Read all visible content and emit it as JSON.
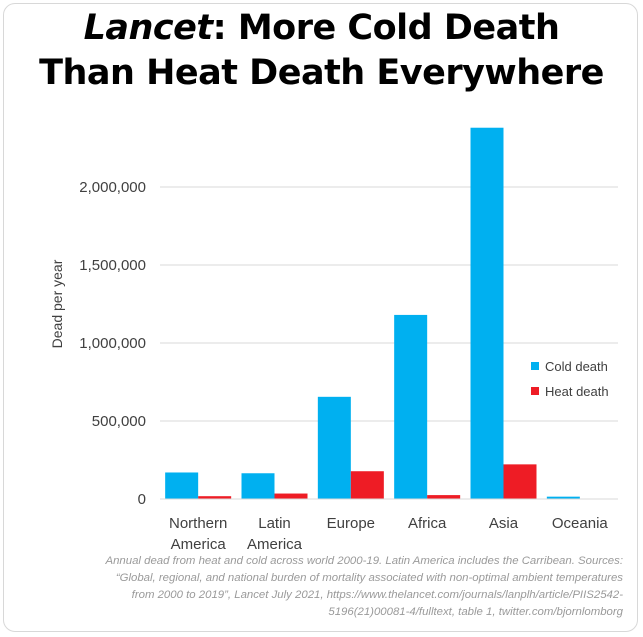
{
  "title": {
    "italic_part": "Lancet",
    "rest_line1": ": More Cold Death",
    "line2": "Than Heat Death Everywhere"
  },
  "chart_data": {
    "type": "bar",
    "categories": [
      [
        "Northern",
        "America"
      ],
      [
        "Latin",
        "America"
      ],
      [
        "Europe"
      ],
      [
        "Africa"
      ],
      [
        "Asia"
      ],
      [
        "Oceania"
      ]
    ],
    "series": [
      {
        "name": "Cold death",
        "color": "#00b0f0",
        "values": [
          170000,
          165000,
          655000,
          1180000,
          2380000,
          15000
        ]
      },
      {
        "name": "Heat death",
        "color": "#ee1c25",
        "values": [
          18000,
          35000,
          178000,
          25000,
          222000,
          1000
        ]
      }
    ],
    "ylabel": "Dead per year",
    "ylim": [
      0,
      2400000
    ],
    "yticks": [
      0,
      500000,
      1000000,
      1500000,
      2000000
    ],
    "ytick_labels": [
      "0",
      "500,000",
      "1,000,000",
      "1,500,000",
      "2,000,000"
    ],
    "grid": true,
    "legend_position": "right"
  },
  "footnote": [
    "Annual dead from heat and cold across world 2000-19. Latin America includes the Carribean. Sources:",
    "“Global, regional, and national burden of mortality associated with non-optimal ambient temperatures",
    "from 2000 to 2019”, Lancet July 2021, https://www.thelancet.com/journals/lanplh/article/PIIS2542-",
    "5196(21)00081-4/fulltext, table 1, twitter.com/bjornlomborg"
  ]
}
